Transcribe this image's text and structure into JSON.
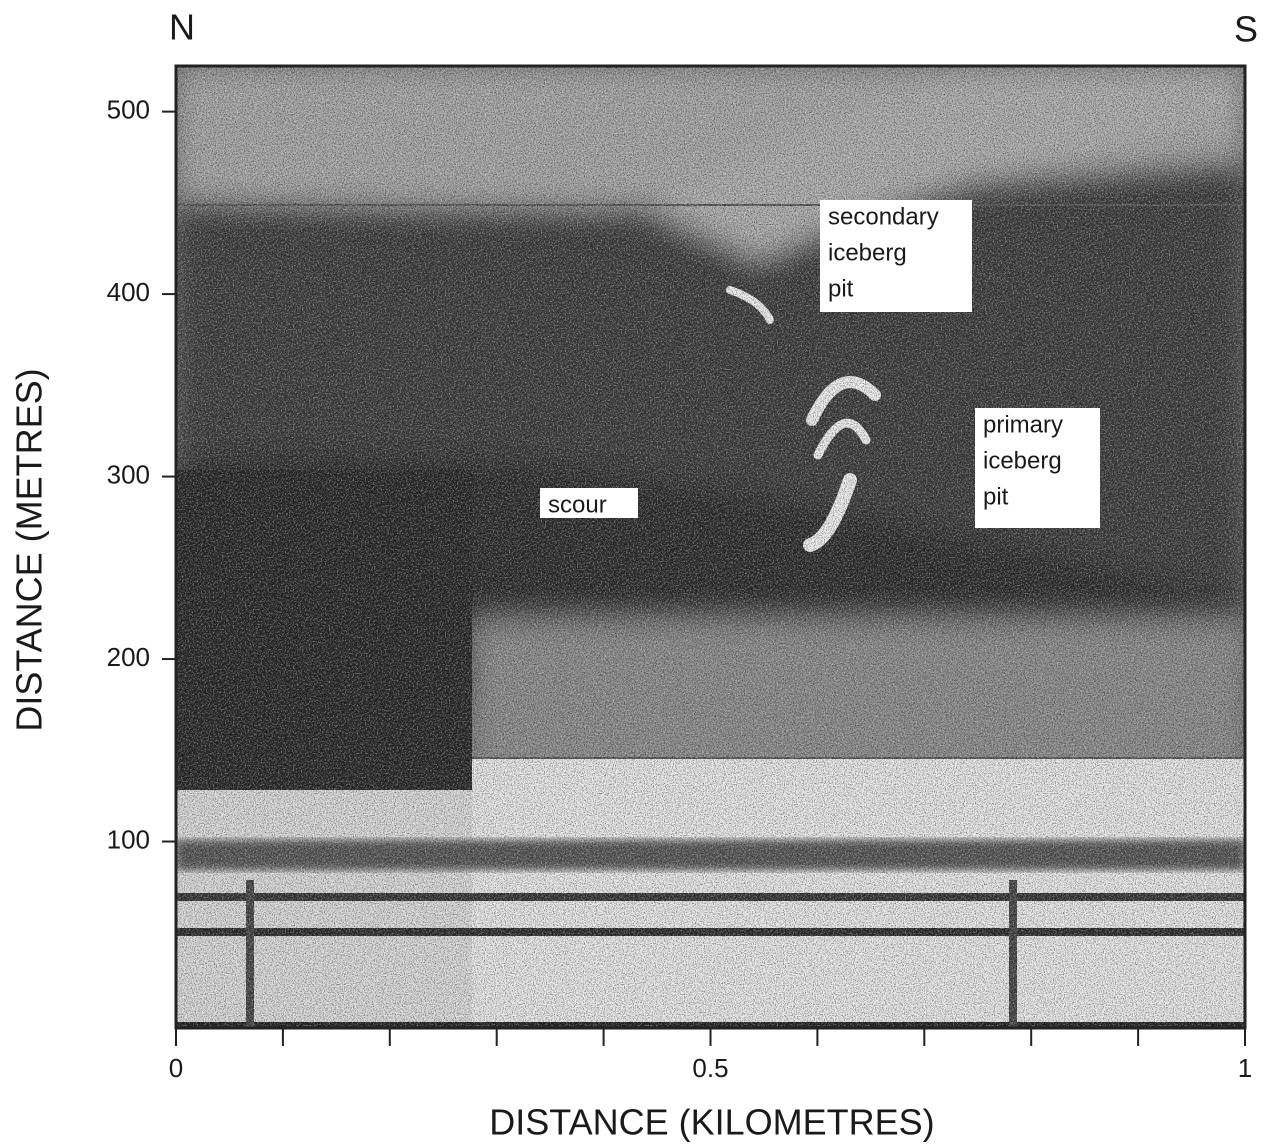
{
  "chart_data": {
    "type": "sonar-image",
    "x_label": "DISTANCE  (KILOMETRES)",
    "y_label": "DISTANCE  (METRES)",
    "left_direction": "N",
    "right_direction": "S",
    "xlim": [
      0,
      1
    ],
    "xticks": [
      0,
      0.5,
      1
    ],
    "xminor_ticks": [
      0.1,
      0.2,
      0.3,
      0.4,
      0.6,
      0.7,
      0.8,
      0.9
    ],
    "ylim": [
      0,
      525
    ],
    "yticks": [
      100,
      200,
      300,
      400,
      500
    ],
    "annotations": [
      {
        "lines": [
          "secondary",
          "iceberg",
          "pit"
        ]
      },
      {
        "lines": [
          "primary",
          "iceberg",
          "pit"
        ]
      },
      {
        "lines": [
          "scour"
        ]
      }
    ]
  }
}
